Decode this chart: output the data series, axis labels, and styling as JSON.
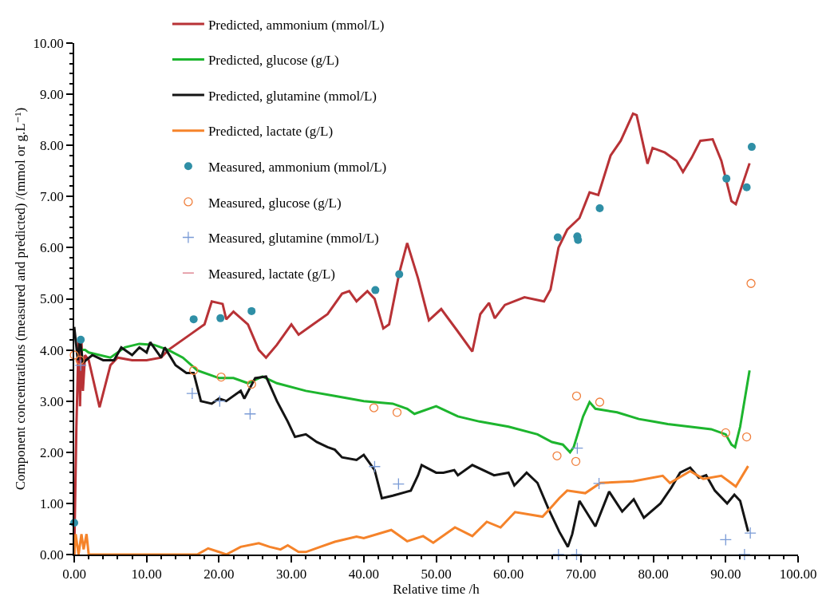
{
  "chart_data": {
    "type": "line",
    "xlabel": "Relative time /h",
    "ylabel": "Component concentrations (measured and predicted) /(mmol or g.L⁻¹)",
    "xlim": [
      0,
      100
    ],
    "xticks": [
      {
        "value": 0,
        "label": "0.00"
      },
      {
        "value": 10,
        "label": "10.00"
      },
      {
        "value": 20,
        "label": "20.00"
      },
      {
        "value": 30,
        "label": "30.00"
      },
      {
        "value": 40,
        "label": "40.00"
      },
      {
        "value": 50,
        "label": "50.00"
      },
      {
        "value": 60,
        "label": "60.00"
      },
      {
        "value": 70,
        "label": "70.00"
      },
      {
        "value": 80,
        "label": "80.00"
      },
      {
        "value": 90,
        "label": "90.00"
      },
      {
        "value": 100,
        "label": "100.00"
      }
    ],
    "ylim": [
      0,
      10
    ],
    "yticks": [
      {
        "value": 0,
        "label": "0.00"
      },
      {
        "value": 1,
        "label": "1.00"
      },
      {
        "value": 2,
        "label": "2.00"
      },
      {
        "value": 3,
        "label": "3.00"
      },
      {
        "value": 4,
        "label": "4.00"
      },
      {
        "value": 5,
        "label": "5.00"
      },
      {
        "value": 6,
        "label": "6.00"
      },
      {
        "value": 7,
        "label": "7.00"
      },
      {
        "value": 8,
        "label": "8.00"
      },
      {
        "value": 9,
        "label": "9.00"
      },
      {
        "value": 10,
        "label": "10.00"
      }
    ],
    "grid": false,
    "legend": "top",
    "marker": "none",
    "line_style": "solid",
    "series": [
      {
        "name": "Predicted, ammonium (mmol/L)",
        "color": "#b83236",
        "x": [
          0,
          0.3,
          0.6,
          0.8,
          1.0,
          1.2,
          1.5,
          2,
          3.5,
          5,
          6,
          8,
          10,
          12,
          13,
          16,
          18,
          19,
          20.5,
          21,
          22,
          24,
          25.5,
          26.5,
          28,
          30,
          31,
          33,
          35,
          37,
          38,
          39,
          40.5,
          41.5,
          42.7,
          43.5,
          44.9,
          46,
          47.5,
          49,
          50.7,
          52.9,
          55,
          56.1,
          57.3,
          58.1,
          59.5,
          62.2,
          64.9,
          65.8,
          66.9,
          68.1,
          69.8,
          71.2,
          72.4,
          74.1,
          75.5,
          77.2,
          77.7,
          79.2,
          79.9,
          81.6,
          83.2,
          84.1,
          85.3,
          86.5,
          88.2,
          89.4,
          90.8,
          91.4,
          93.3
        ],
        "values": [
          0,
          2.5,
          4.2,
          2.9,
          4.2,
          3.2,
          3.9,
          3.8,
          2.88,
          3.7,
          3.85,
          3.8,
          3.8,
          3.85,
          4.0,
          4.3,
          4.5,
          4.95,
          4.9,
          4.6,
          4.75,
          4.5,
          4.0,
          3.85,
          4.1,
          4.5,
          4.3,
          4.5,
          4.7,
          5.1,
          5.15,
          4.95,
          5.15,
          5.0,
          4.42,
          4.5,
          5.5,
          6.09,
          5.4,
          4.58,
          4.8,
          4.38,
          3.97,
          4.7,
          4.92,
          4.62,
          4.88,
          5.03,
          4.95,
          5.18,
          6.0,
          6.35,
          6.58,
          7.08,
          7.03,
          7.8,
          8.09,
          8.62,
          8.59,
          7.64,
          7.95,
          7.86,
          7.7,
          7.48,
          7.76,
          8.09,
          8.12,
          7.7,
          6.91,
          6.85,
          7.65
        ]
      },
      {
        "name": "Predicted, glucose (g/L)",
        "color": "#1db52e",
        "x": [
          0.3,
          1.5,
          2,
          5,
          7,
          9,
          11,
          13,
          15,
          17,
          20,
          22,
          24,
          26,
          28,
          32,
          36,
          40,
          44,
          46,
          47,
          50,
          53,
          56,
          60,
          64,
          66,
          67.5,
          68.5,
          69,
          70.3,
          71.2,
          72,
          75,
          78,
          80,
          82,
          85,
          88,
          90,
          90.8,
          91.3,
          92,
          93.3
        ],
        "values": [
          4.0,
          4.0,
          3.95,
          3.85,
          4.05,
          4.12,
          4.1,
          4.0,
          3.85,
          3.6,
          3.45,
          3.45,
          3.35,
          3.48,
          3.35,
          3.2,
          3.1,
          3.0,
          2.95,
          2.85,
          2.75,
          2.9,
          2.7,
          2.6,
          2.5,
          2.35,
          2.2,
          2.15,
          2.0,
          2.1,
          2.7,
          2.98,
          2.85,
          2.78,
          2.65,
          2.6,
          2.55,
          2.5,
          2.45,
          2.35,
          2.15,
          2.1,
          2.5,
          3.6
        ]
      },
      {
        "name": "Predicted, glutamine (mmol/L)",
        "color": "#141414",
        "x": [
          0,
          0.5,
          0.8,
          1.2,
          2.5,
          4,
          5.5,
          6.5,
          8,
          9,
          10,
          10.5,
          12,
          12.5,
          14,
          15.5,
          16.5,
          17.5,
          19,
          20,
          21,
          23,
          23.5,
          25,
          26.5,
          28,
          29.5,
          30.5,
          32,
          33.5,
          35,
          36,
          37,
          39,
          40,
          41.5,
          42.5,
          44,
          46.5,
          47.5,
          48,
          50,
          51,
          52.5,
          53,
          55,
          58,
          60,
          60.8,
          62.5,
          64,
          65.5,
          67,
          68.2,
          68.8,
          69.8,
          72,
          73.9,
          75.7,
          77.3,
          78.7,
          81,
          82.5,
          83.7,
          85.1,
          86.3,
          87.3,
          88.5,
          90.2,
          91.2,
          92,
          93.1
        ],
        "values": [
          4.45,
          3.8,
          4.2,
          3.75,
          3.9,
          3.8,
          3.8,
          4.05,
          3.9,
          4.05,
          3.95,
          4.15,
          3.85,
          4.05,
          3.7,
          3.55,
          3.55,
          3.0,
          2.95,
          3.05,
          3.0,
          3.2,
          3.05,
          3.45,
          3.48,
          3.0,
          2.6,
          2.3,
          2.35,
          2.2,
          2.1,
          2.05,
          1.9,
          1.85,
          1.95,
          1.65,
          1.1,
          1.15,
          1.25,
          1.55,
          1.75,
          1.6,
          1.6,
          1.65,
          1.55,
          1.75,
          1.55,
          1.6,
          1.35,
          1.6,
          1.4,
          0.9,
          0.45,
          0.15,
          0.4,
          1.05,
          0.55,
          1.23,
          0.84,
          1.08,
          0.72,
          1.0,
          1.31,
          1.6,
          1.7,
          1.5,
          1.55,
          1.25,
          1.0,
          1.17,
          1.05,
          0.45
        ]
      },
      {
        "name": "Predicted, lactate (g/L)",
        "color": "#f5832a",
        "x": [
          0,
          0.2,
          0.6,
          1.0,
          1.3,
          1.7,
          2,
          5,
          17,
          18.5,
          20,
          21,
          23,
          25.5,
          27,
          28.5,
          29.5,
          31,
          32,
          34,
          36,
          39,
          40,
          43.8,
          46,
          48.2,
          49.6,
          52.6,
          55,
          57,
          58.9,
          60.9,
          64.7,
          66.2,
          67,
          68.1,
          70.6,
          72.7,
          77.2,
          81.3,
          82.3,
          85.1,
          86.9,
          89.4,
          91.4,
          93.1
        ],
        "values": [
          0,
          0.4,
          0,
          0.4,
          0.1,
          0.4,
          0,
          0,
          0,
          0.12,
          0.05,
          0,
          0.15,
          0.22,
          0.15,
          0.1,
          0.18,
          0.05,
          0.05,
          0.15,
          0.25,
          0.35,
          0.32,
          0.48,
          0.26,
          0.36,
          0.23,
          0.53,
          0.36,
          0.64,
          0.53,
          0.83,
          0.74,
          0.97,
          1.1,
          1.25,
          1.2,
          1.4,
          1.43,
          1.54,
          1.4,
          1.63,
          1.48,
          1.54,
          1.33,
          1.73
        ]
      },
      {
        "name": "Measured, ammonium (mmol/L)",
        "color": "#2f8fa6",
        "type": "scatter",
        "marker": "circle",
        "x": [
          0,
          0.9,
          16.5,
          20.2,
          24.5,
          41.6,
          44.9,
          66.8,
          69.5,
          69.6,
          72.6,
          90.1,
          92.9,
          93.6
        ],
        "values": [
          0.62,
          4.2,
          4.6,
          4.62,
          4.76,
          5.17,
          5.48,
          6.2,
          6.22,
          6.15,
          6.77,
          7.35,
          7.18,
          7.97
        ]
      },
      {
        "name": "Measured, glucose (g/L)",
        "color": "#f07f3c",
        "type": "scatter",
        "marker": "circle-open",
        "x": [
          0,
          0.8,
          16.5,
          20.3,
          24.5,
          41.4,
          44.6,
          66.7,
          69.4,
          69.3,
          72.6,
          90,
          92.9,
          93.5
        ],
        "values": [
          3.9,
          3.8,
          3.6,
          3.47,
          3.33,
          2.87,
          2.78,
          1.93,
          3.1,
          1.82,
          2.98,
          2.38,
          2.3,
          5.3
        ]
      },
      {
        "name": "Measured, glutamine (mmol/L)",
        "color": "#7a9bd6",
        "type": "scatter",
        "marker": "cross",
        "x": [
          0.9,
          16.3,
          20.1,
          24.3,
          41.5,
          44.8,
          66.9,
          69.5,
          69.4,
          72.5,
          90,
          92.6,
          93.4
        ],
        "values": [
          3.7,
          3.15,
          3.0,
          2.75,
          1.72,
          1.38,
          0,
          2.08,
          0,
          1.39,
          0.29,
          0,
          0.42
        ]
      },
      {
        "name": "Measured, lactate (g/L)",
        "color": "#d9707f",
        "type": "scatter",
        "marker": "dash"
      }
    ]
  }
}
